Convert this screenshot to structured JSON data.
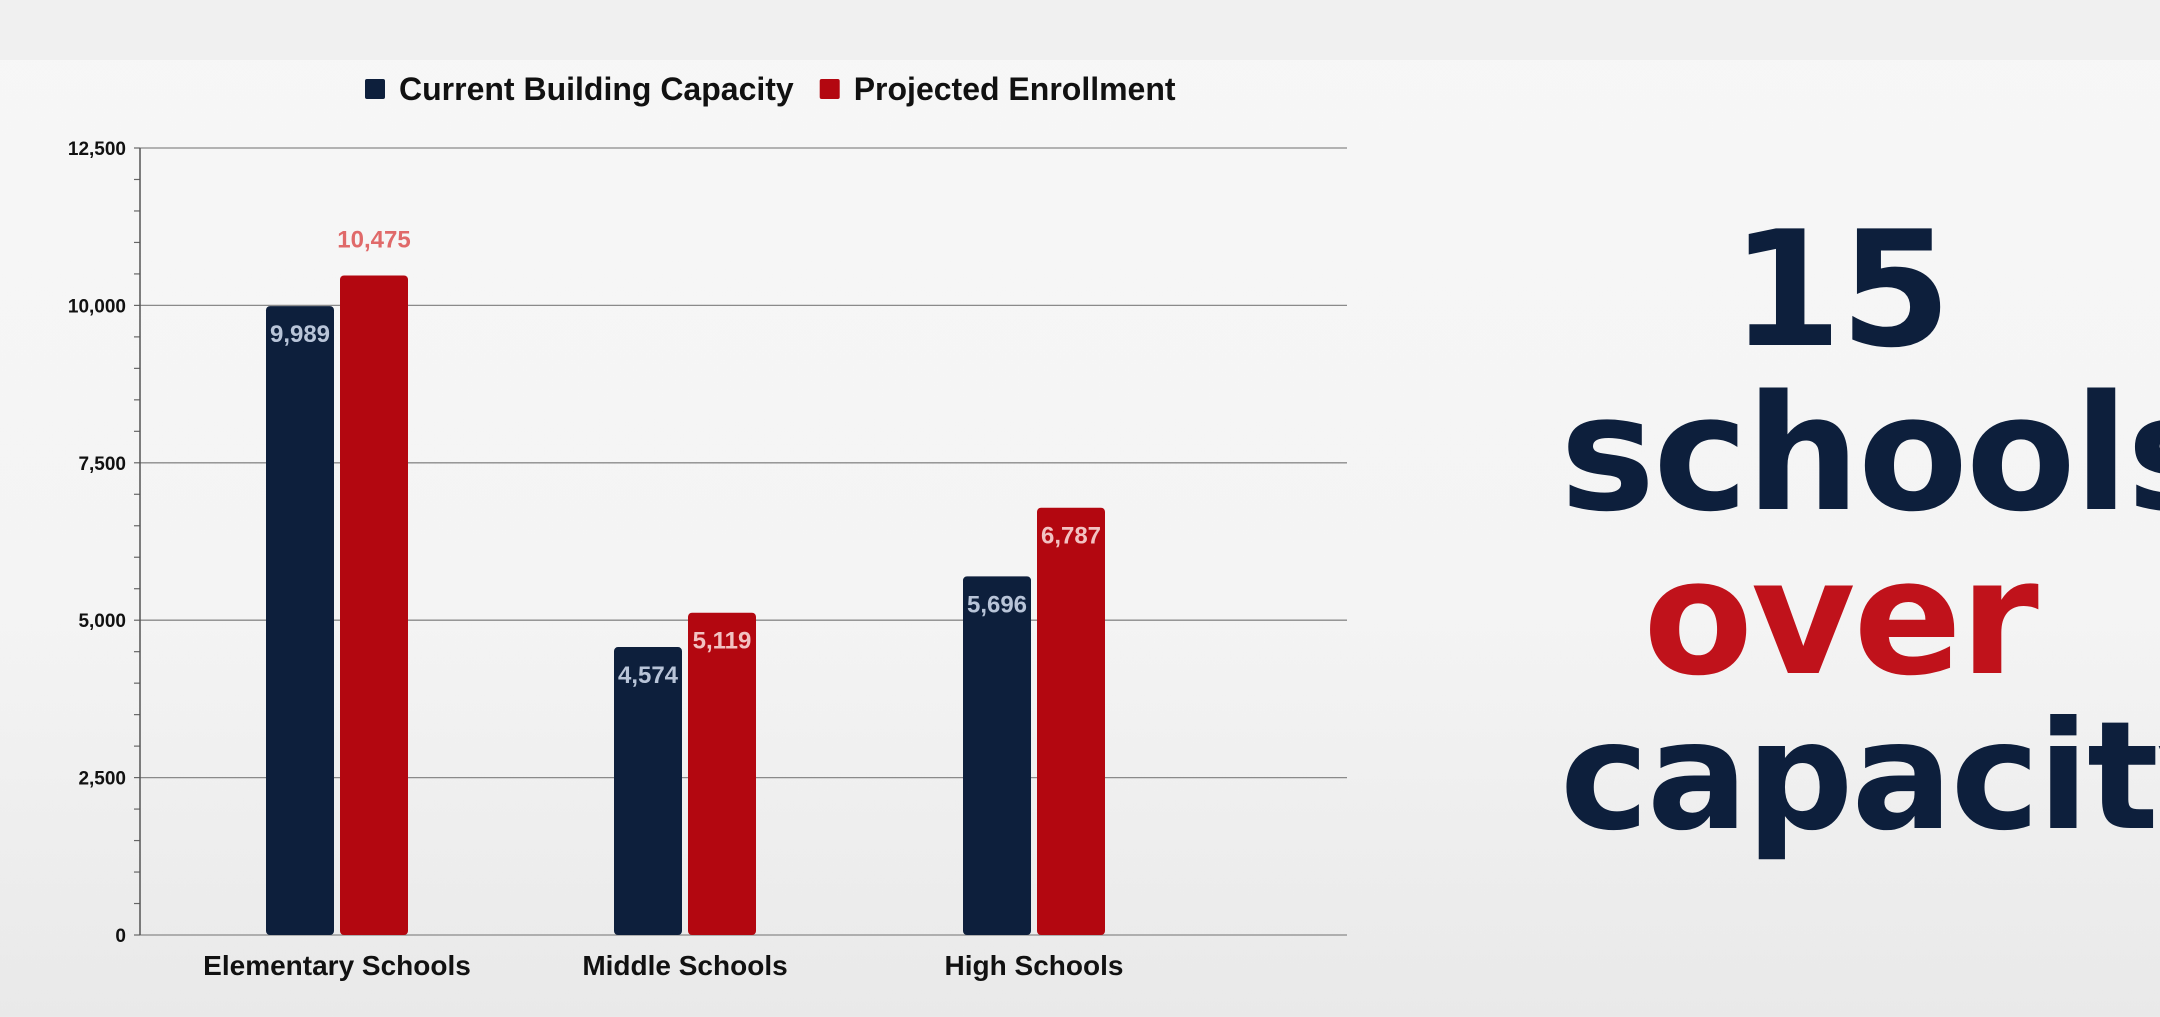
{
  "colors": {
    "capacity": "#0d1f3c",
    "enrollment": "#b30710",
    "enrollment_label_above": "#e06a6a",
    "capacity_label_inside": "#b8c4d8",
    "enrollment_label_inside": "#f2c2c2",
    "headline_dark": "#0d1f3c",
    "headline_accent": "#c0121b"
  },
  "headline": {
    "number": "15",
    "word1": "schools",
    "word2": "over",
    "word3": "capacity"
  },
  "chart_data": {
    "type": "bar",
    "categories": [
      "Elementary Schools",
      "Middle Schools",
      "High Schools"
    ],
    "series": [
      {
        "name": "Current Building Capacity",
        "values": [
          9989,
          4574,
          5696
        ],
        "labels": [
          "9,989",
          "4,574",
          "5,696"
        ]
      },
      {
        "name": "Projected Enrollment",
        "values": [
          10475,
          5119,
          6787
        ],
        "labels": [
          "10,475",
          "5,119",
          "6,787"
        ]
      }
    ],
    "ylim": [
      0,
      12500
    ],
    "yticks": [
      0,
      2500,
      5000,
      7500,
      10000,
      12500
    ],
    "ytick_labels": [
      "0",
      "2,500",
      "5,000",
      "7,500",
      "10,000",
      "12,500"
    ],
    "legend_position": "top-center",
    "grid": true
  }
}
